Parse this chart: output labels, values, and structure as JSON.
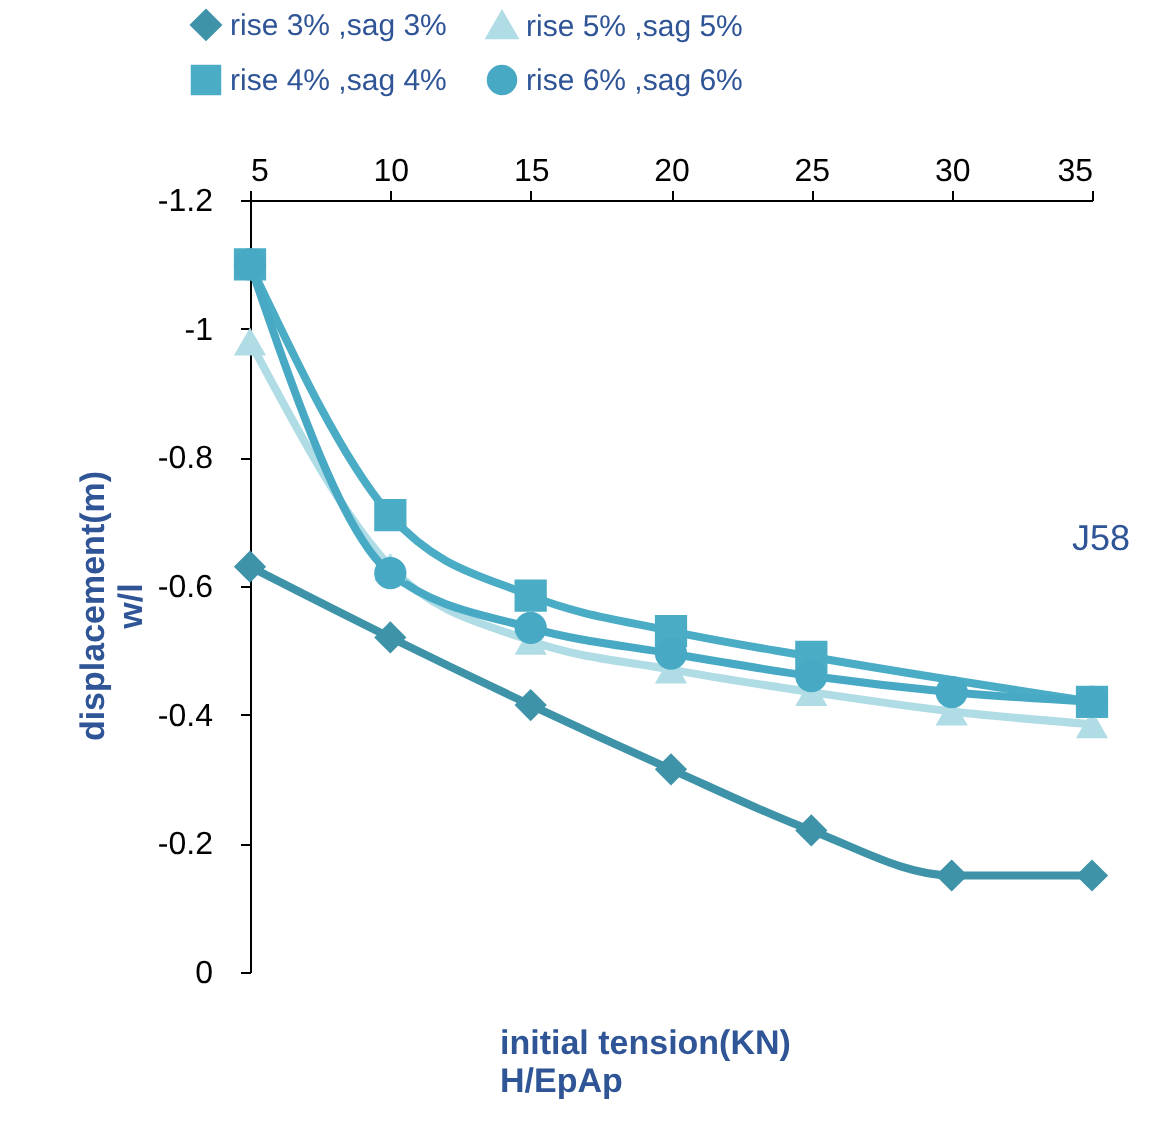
{
  "chart_data": {
    "type": "line",
    "xlabel": "initial tension(KN)\nH/EpAp",
    "ylabel": "displacement(m)\nw/l",
    "x": [
      5,
      10,
      15,
      20,
      25,
      30,
      35
    ],
    "series": [
      {
        "name": "rise 3% ,sag 3%",
        "color": "#3f93a8",
        "marker": "diamond",
        "values": [
          -0.63,
          -0.52,
          -0.415,
          -0.315,
          -0.22,
          -0.15,
          -0.15
        ]
      },
      {
        "name": "rise 4% ,sag 4%",
        "color": "#4bacc6",
        "marker": "square",
        "values": [
          -1.1,
          -0.71,
          -0.585,
          -0.53,
          -0.49,
          null,
          -0.42
        ]
      },
      {
        "name": "rise 5% ,sag 5%",
        "color": "#b0dce6",
        "marker": "triangle",
        "values": [
          -0.98,
          -0.63,
          -0.515,
          -0.47,
          -0.435,
          -0.405,
          -0.385
        ]
      },
      {
        "name": "rise 6% ,sag 6%",
        "color": "#47a9c4",
        "marker": "circle",
        "values": [
          -1.1,
          -0.62,
          -0.535,
          -0.495,
          -0.46,
          -0.435,
          -0.42
        ]
      }
    ],
    "xlim": [
      5,
      35
    ],
    "xticks": [
      5,
      10,
      15,
      20,
      25,
      30,
      35
    ],
    "ylim": [
      0,
      -1.2
    ],
    "yticks": [
      0,
      -0.2,
      -0.4,
      -0.6,
      -0.8,
      -1,
      -1.2
    ],
    "annotations": [
      "J58"
    ],
    "legend": "top left",
    "grid": false
  }
}
